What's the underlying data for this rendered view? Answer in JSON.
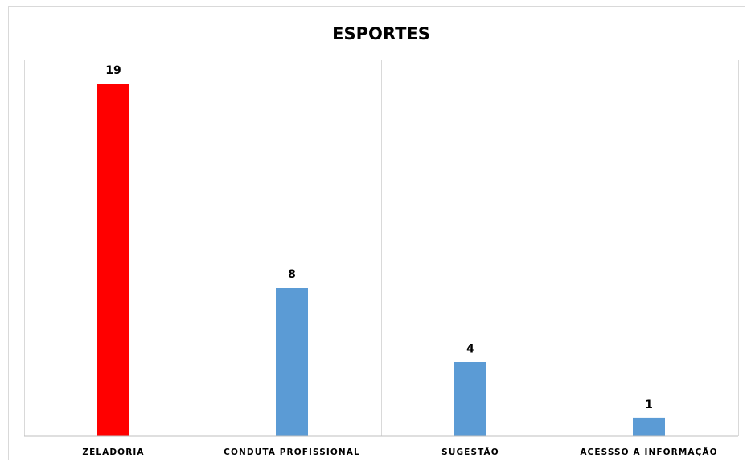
{
  "chart_data": {
    "type": "bar",
    "title": "ESPORTES",
    "categories": [
      "ZELADORIA",
      "CONDUTA PROFISSIONAL",
      "SUGESTÃO",
      "ACESSSO A INFORMAÇÃO"
    ],
    "values": [
      19,
      8,
      4,
      1
    ],
    "data_labels": [
      "19",
      "8",
      "4",
      "1"
    ],
    "colors": [
      "#ff0000",
      "#5b9bd5",
      "#5b9bd5",
      "#5b9bd5"
    ],
    "ylim": [
      0,
      20
    ],
    "xlabel": "",
    "ylabel": "",
    "grid": "vertical-separators",
    "legend": "none"
  }
}
